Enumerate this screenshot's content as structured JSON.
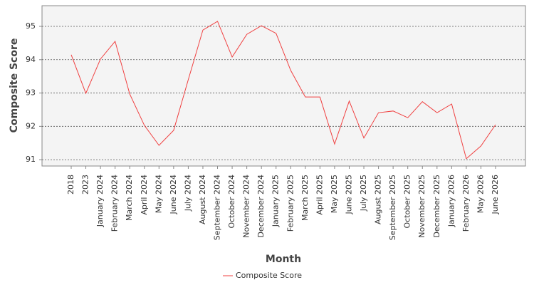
{
  "chart_data": {
    "type": "line",
    "x_label": "Month",
    "y_label": "Composite Score",
    "categories": [
      "2018",
      "2023",
      "January 2024",
      "February 2024",
      "March 2024",
      "April 2024",
      "May 2024",
      "June 2024",
      "July 2024",
      "August 2024",
      "September 2024",
      "October 2024",
      "November 2024",
      "December 2024",
      "January 2025",
      "February 2025",
      "March 2025",
      "April 2025",
      "May 2025",
      "June 2025",
      "July 2025",
      "August 2025",
      "September 2025",
      "October 2025",
      "November 2025",
      "December 2025",
      "January 2026",
      "February 2026",
      "May 2026",
      "June 2026"
    ],
    "series": [
      {
        "name": "Composite Score",
        "color": "#f04040",
        "values": [
          94.15,
          92.99,
          94.02,
          94.55,
          92.97,
          92.03,
          91.43,
          91.88,
          93.4,
          94.89,
          95.15,
          94.08,
          94.76,
          95.02,
          94.79,
          93.68,
          92.88,
          92.88,
          91.47,
          92.76,
          91.65,
          92.41,
          92.46,
          92.26,
          92.74,
          92.41,
          92.67,
          91.03,
          91.41,
          92.05
        ]
      }
    ],
    "ylim": [
      90.81,
      95.62
    ],
    "yticks": [
      91,
      92,
      93,
      94,
      95
    ],
    "grid": true,
    "legend": "bottom"
  }
}
